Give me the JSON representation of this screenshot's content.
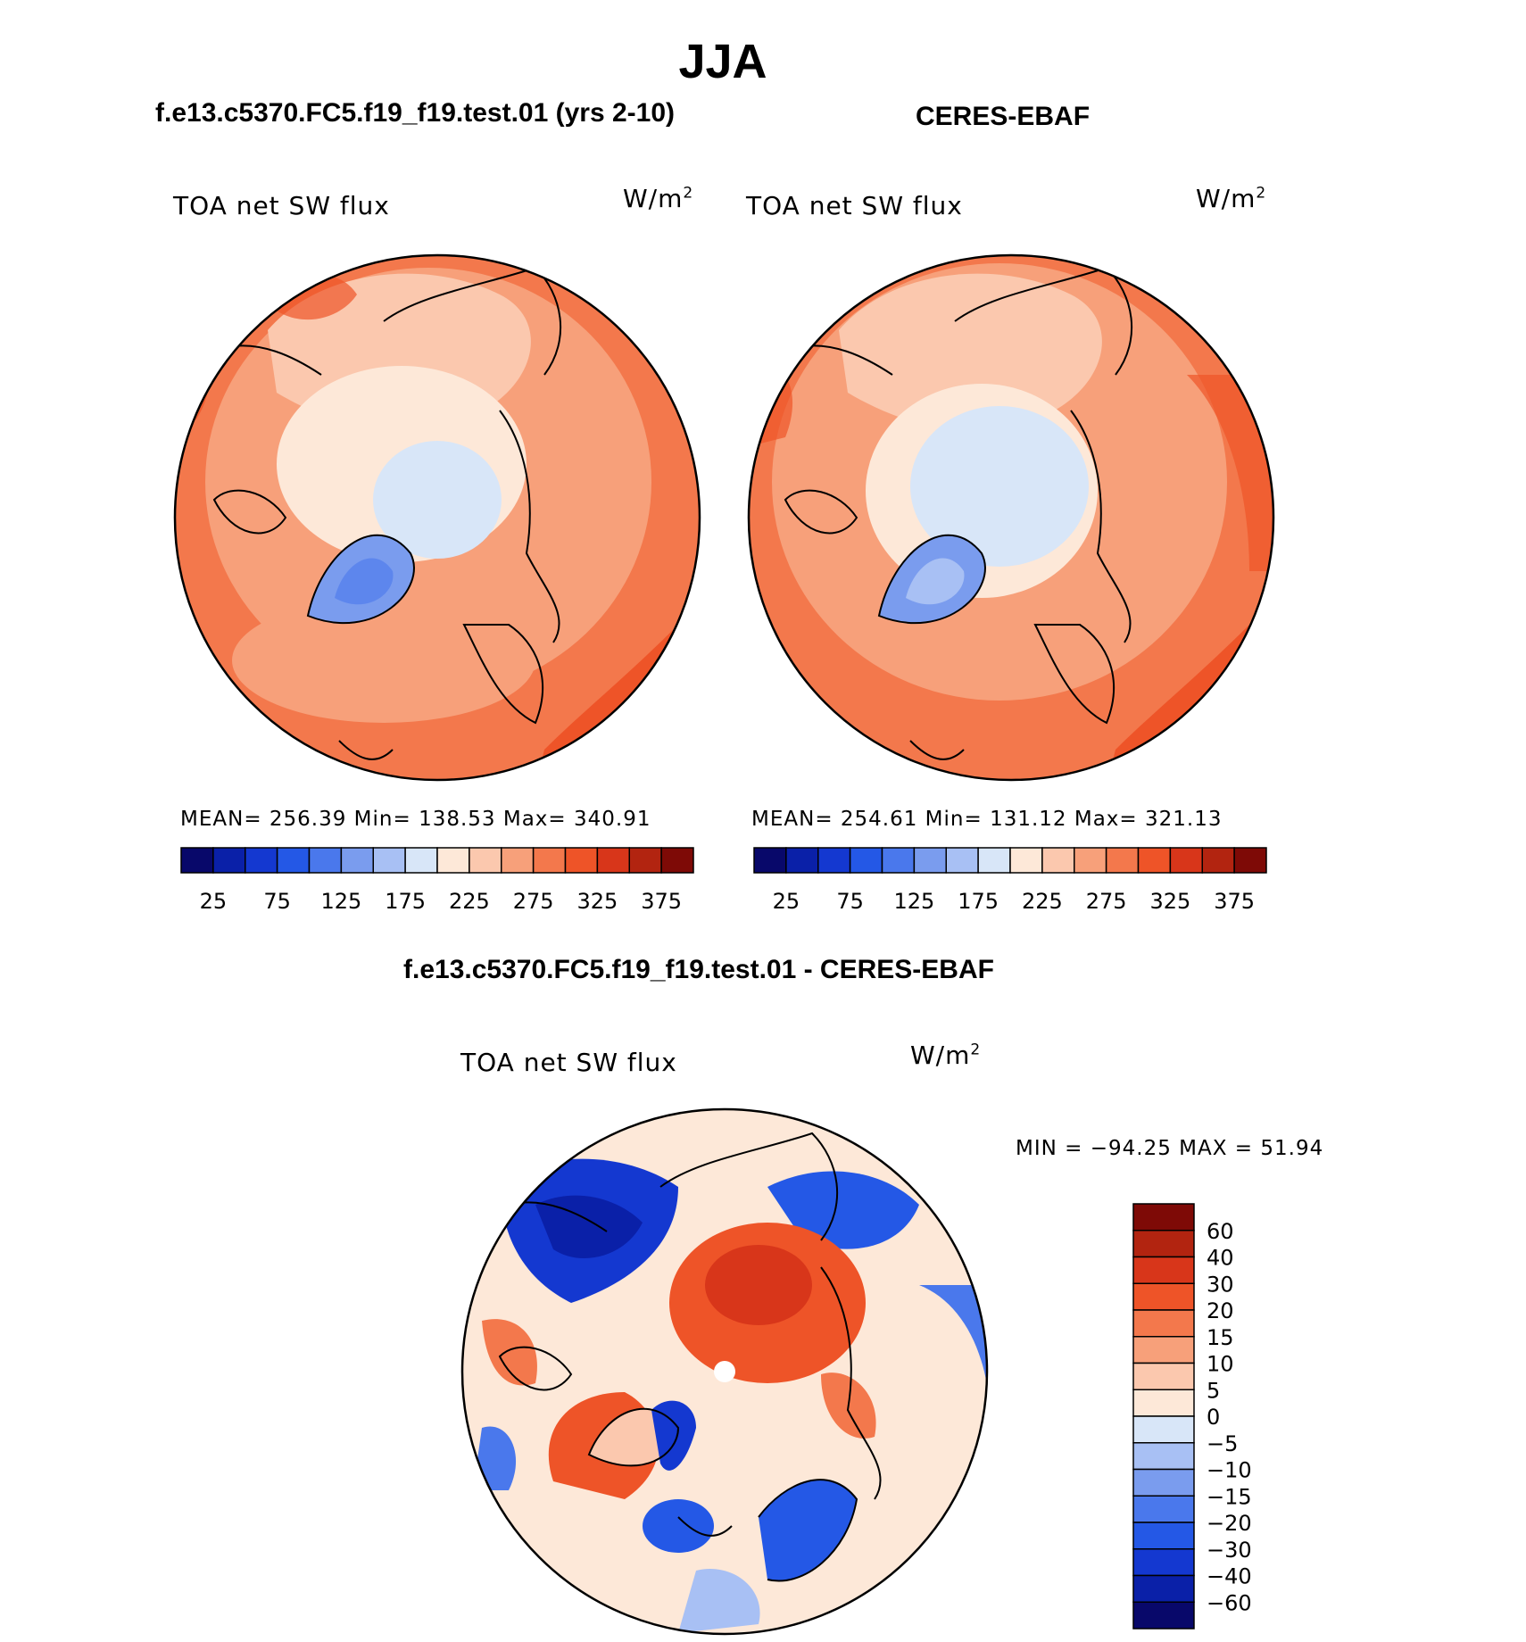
{
  "title": "JJA",
  "panels": [
    {
      "case_title": "f.e13.c5370.FC5.f19_f19.test.01 (yrs 2-10)",
      "variable": "TOA net SW flux",
      "units": "W/m",
      "units_exp": "2",
      "stats": "MEAN= 256.39   Min= 138.53   Max= 340.91"
    },
    {
      "case_title": "CERES-EBAF",
      "variable": "TOA net SW flux",
      "units": "W/m",
      "units_exp": "2",
      "stats": "MEAN= 254.61   Min= 131.12   Max= 321.13"
    }
  ],
  "abs_colorbar": {
    "colors": [
      "#08086a",
      "#0a20a8",
      "#1438d0",
      "#2458e6",
      "#4a78ec",
      "#7a9cee",
      "#a8c0f4",
      "#d8e6f8",
      "#fde8d8",
      "#fbc8ae",
      "#f7a07a",
      "#f3784c",
      "#ee5428",
      "#d8361a",
      "#b22410",
      "#7e0a06"
    ],
    "tick_labels": [
      "25",
      "75",
      "125",
      "175",
      "225",
      "275",
      "325",
      "375"
    ]
  },
  "diff_panel": {
    "title": "f.e13.c5370.FC5.f19_f19.test.01 - CERES-EBAF",
    "variable": "TOA net SW flux",
    "units": "W/m",
    "units_exp": "2",
    "minmax": "MIN = −94.25 MAX =   51.94"
  },
  "diff_colorbar": {
    "colors": [
      "#7e0a06",
      "#b22410",
      "#d8361a",
      "#ee5428",
      "#f3784c",
      "#f7a07a",
      "#fbc8ae",
      "#fde8d8",
      "#d8e6f8",
      "#a8c0f4",
      "#7a9cee",
      "#4a78ec",
      "#2458e6",
      "#1438d0",
      "#0a20a8",
      "#08086a"
    ],
    "tick_labels": [
      "60",
      "40",
      "30",
      "20",
      "15",
      "10",
      "5",
      "0",
      "−5",
      "−10",
      "−15",
      "−20",
      "−30",
      "−40",
      "−60"
    ]
  }
}
